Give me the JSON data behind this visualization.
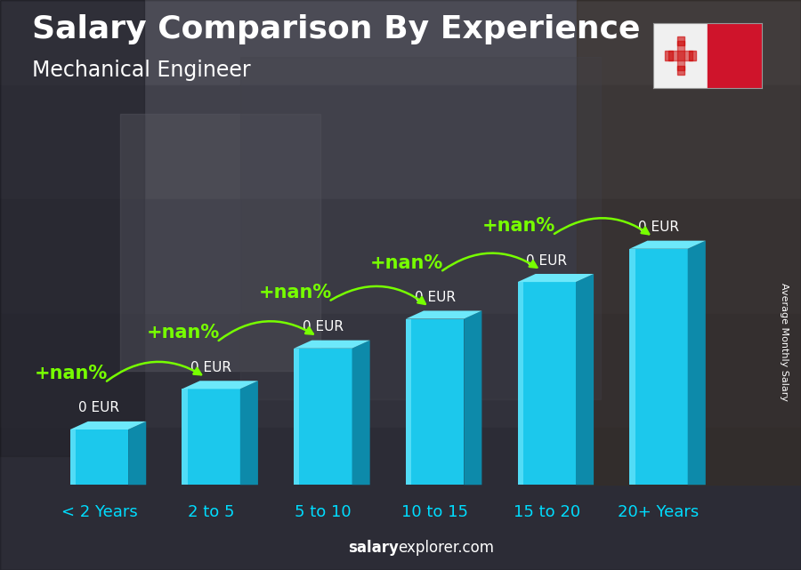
{
  "title": "Salary Comparison By Experience",
  "subtitle": "Mechanical Engineer",
  "ylabel": "Average Monthly Salary",
  "watermark_bold": "salary",
  "watermark_regular": "explorer.com",
  "categories": [
    "< 2 Years",
    "2 to 5",
    "5 to 10",
    "10 to 15",
    "15 to 20",
    "20+ Years"
  ],
  "bar_labels": [
    "0 EUR",
    "0 EUR",
    "0 EUR",
    "0 EUR",
    "0 EUR",
    "0 EUR"
  ],
  "increase_labels": [
    "+nan%",
    "+nan%",
    "+nan%",
    "+nan%",
    "+nan%"
  ],
  "heights": [
    1.5,
    2.6,
    3.7,
    4.5,
    5.5,
    6.4
  ],
  "bar_front_color": "#1cc8ec",
  "bar_side_color": "#0d8aaa",
  "bar_top_color": "#6de8fa",
  "bar_highlight_color": "#80eeff",
  "arrow_color": "#77ff00",
  "nan_color": "#77ff00",
  "title_color": "#ffffff",
  "subtitle_color": "#ffffff",
  "label_color": "#ffffff",
  "cat_color": "#00ddff",
  "watermark_color": "#ffffff",
  "bg_top_color": "#6b6b7a",
  "bg_mid_color": "#555560",
  "bg_bot_color": "#444450",
  "overlay_alpha": 0.38,
  "title_fontsize": 26,
  "subtitle_fontsize": 17,
  "cat_fontsize": 13,
  "bar_label_fontsize": 11,
  "nan_fontsize": 15,
  "ylabel_fontsize": 8
}
